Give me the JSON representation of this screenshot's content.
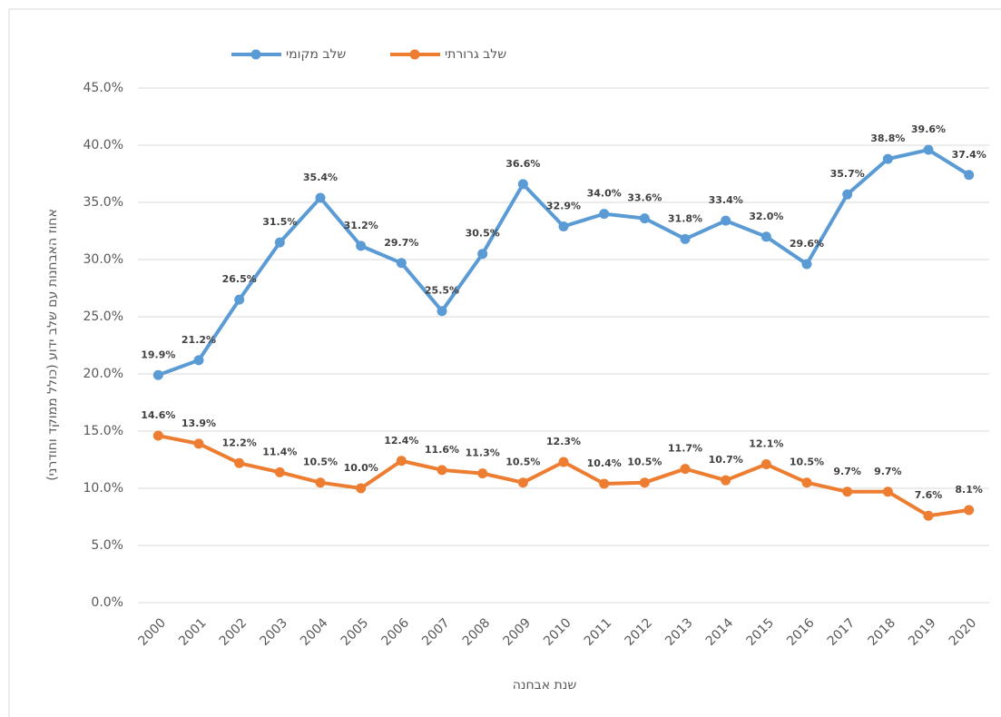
{
  "chart_data": {
    "type": "line",
    "x_label": "שנת אבחנה",
    "y_label": "אחוז האבחנות עם שלב ידוע (כולל ממוקד וחודרני)",
    "categories": [
      "2000",
      "2001",
      "2002",
      "2003",
      "2004",
      "2005",
      "2006",
      "2007",
      "2008",
      "2009",
      "2010",
      "2011",
      "2012",
      "2013",
      "2014",
      "2015",
      "2016",
      "2017",
      "2018",
      "2019",
      "2020"
    ],
    "series": [
      {
        "name": "שלב מקומי",
        "color": "#5b9bd5",
        "values": [
          19.9,
          21.2,
          26.5,
          31.5,
          35.4,
          31.2,
          29.7,
          25.5,
          30.5,
          36.6,
          32.9,
          34.0,
          33.6,
          31.8,
          33.4,
          32.0,
          29.6,
          35.7,
          38.8,
          39.6,
          37.4
        ],
        "value_labels": [
          "19.9%",
          "21.2%",
          "26.5%",
          "31.5%",
          "35.4%",
          "31.2%",
          "29.7%",
          "25.5%",
          "30.5%",
          "36.6%",
          "32.9%",
          "34.0%",
          "33.6%",
          "31.8%",
          "33.4%",
          "32.0%",
          "29.6%",
          "35.7%",
          "38.8%",
          "39.6%",
          "37.4%"
        ]
      },
      {
        "name": "שלב גרורתי",
        "color": "#ed7d31",
        "values": [
          14.6,
          13.9,
          12.2,
          11.4,
          10.5,
          10.0,
          12.4,
          11.6,
          11.3,
          10.5,
          12.3,
          10.4,
          10.5,
          11.7,
          10.7,
          12.1,
          10.5,
          9.7,
          9.7,
          7.6,
          8.1
        ],
        "value_labels": [
          "14.6%",
          "13.9%",
          "12.2%",
          "11.4%",
          "10.5%",
          "10.0%",
          "12.4%",
          "11.6%",
          "11.3%",
          "10.5%",
          "12.3%",
          "10.4%",
          "10.5%",
          "11.7%",
          "10.7%",
          "12.1%",
          "10.5%",
          "9.7%",
          "9.7%",
          "7.6%",
          "8.1%"
        ]
      }
    ],
    "ylim": [
      0,
      45
    ],
    "yticks": [
      {
        "value": 0,
        "label": "0.0%"
      },
      {
        "value": 5,
        "label": "5.0%"
      },
      {
        "value": 10,
        "label": "10.0%"
      },
      {
        "value": 15,
        "label": "15.0%"
      },
      {
        "value": 20,
        "label": "20.0%"
      },
      {
        "value": 25,
        "label": "25.0%"
      },
      {
        "value": 30,
        "label": "30.0%"
      },
      {
        "value": 35,
        "label": "35.0%"
      },
      {
        "value": 40,
        "label": "40.0%"
      },
      {
        "value": 45,
        "label": "45.0%"
      }
    ],
    "grid": true
  }
}
